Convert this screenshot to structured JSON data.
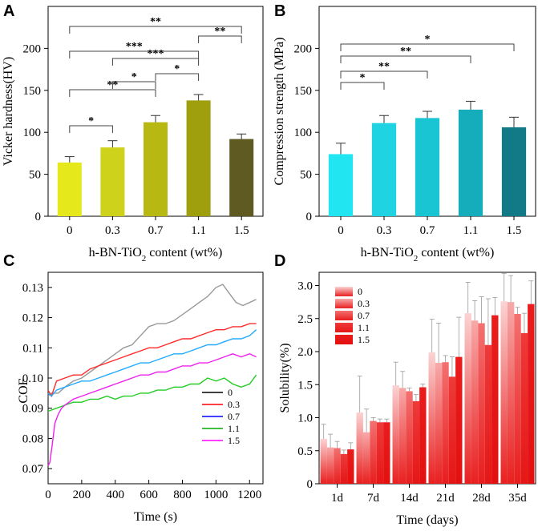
{
  "panels": {
    "A": {
      "label": "A"
    },
    "B": {
      "label": "B"
    },
    "C": {
      "label": "C"
    },
    "D": {
      "label": "D"
    }
  },
  "chart_data": [
    {
      "id": "A",
      "type": "bar",
      "xlabel": "h-BN-TiO₂ content (wt%)",
      "ylabel": "Vicker hardness(HV)",
      "ylim": [
        0,
        250
      ],
      "yticks": [
        0,
        50,
        100,
        150,
        200
      ],
      "categories": [
        "0",
        "0.3",
        "0.7",
        "1.1",
        "1.5"
      ],
      "values": [
        64,
        82,
        112,
        138,
        92
      ],
      "errors": [
        7,
        8,
        8,
        7,
        6
      ],
      "colors": [
        "#e5e81b",
        "#cfd21a",
        "#b8b813",
        "#9f9e0c",
        "#5f5a22"
      ],
      "significance": [
        {
          "from": 0,
          "to": 1,
          "label": "*"
        },
        {
          "from": 0,
          "to": 2,
          "label": "**"
        },
        {
          "from": 1,
          "to": 2,
          "label": "*"
        },
        {
          "from": 2,
          "to": 3,
          "label": "*"
        },
        {
          "from": 0,
          "to": 3,
          "label": "***"
        },
        {
          "from": 1,
          "to": 3,
          "label": "***"
        },
        {
          "from": 3,
          "to": 4,
          "label": "**"
        },
        {
          "from": 0,
          "to": 4,
          "label": "**"
        }
      ]
    },
    {
      "id": "B",
      "type": "bar",
      "xlabel": "h-BN-TiO₂ content (wt%)",
      "ylabel": "Compression strength (MPa)",
      "ylim": [
        0,
        250
      ],
      "yticks": [
        0,
        50,
        100,
        150,
        200
      ],
      "categories": [
        "0",
        "0.3",
        "0.7",
        "1.1",
        "1.5"
      ],
      "values": [
        74,
        111,
        117,
        127,
        106
      ],
      "errors": [
        13,
        9,
        8,
        10,
        12
      ],
      "colors": [
        "#21e6f2",
        "#1fd3e2",
        "#19c4d3",
        "#15acbc",
        "#117a86"
      ],
      "significance": [
        {
          "from": 0,
          "to": 1,
          "label": "*"
        },
        {
          "from": 0,
          "to": 2,
          "label": "**"
        },
        {
          "from": 0,
          "to": 3,
          "label": "**"
        },
        {
          "from": 0,
          "to": 4,
          "label": "*"
        }
      ]
    },
    {
      "id": "C",
      "type": "line",
      "xlabel": "Time (s)",
      "ylabel": "COF",
      "xlim": [
        0,
        1280
      ],
      "ylim": [
        0.065,
        0.135
      ],
      "xticks": [
        0,
        200,
        400,
        600,
        800,
        1000,
        1200
      ],
      "yticks": [
        0.07,
        0.08,
        0.09,
        0.1,
        0.11,
        0.12,
        0.13
      ],
      "ytick_labels": [
        "0.07",
        "0.08",
        "0.09",
        "0.10",
        "0.11",
        "0.12",
        "0.13"
      ],
      "legend_position": "lower-right",
      "series": [
        {
          "name": "0",
          "color": "#999999",
          "points": [
            [
              0,
              0.094
            ],
            [
              20,
              0.095
            ],
            [
              60,
              0.095
            ],
            [
              100,
              0.097
            ],
            [
              150,
              0.099
            ],
            [
              200,
              0.1
            ],
            [
              250,
              0.102
            ],
            [
              300,
              0.104
            ],
            [
              350,
              0.106
            ],
            [
              400,
              0.108
            ],
            [
              450,
              0.11
            ],
            [
              500,
              0.111
            ],
            [
              550,
              0.114
            ],
            [
              600,
              0.117
            ],
            [
              650,
              0.118
            ],
            [
              700,
              0.118
            ],
            [
              750,
              0.119
            ],
            [
              800,
              0.121
            ],
            [
              850,
              0.123
            ],
            [
              900,
              0.125
            ],
            [
              950,
              0.127
            ],
            [
              1000,
              0.13
            ],
            [
              1040,
              0.131
            ],
            [
              1080,
              0.128
            ],
            [
              1120,
              0.125
            ],
            [
              1160,
              0.124
            ],
            [
              1200,
              0.125
            ],
            [
              1240,
              0.126
            ]
          ]
        },
        {
          "name": "0.3",
          "color": "#ff2a2a",
          "points": [
            [
              0,
              0.096
            ],
            [
              20,
              0.094
            ],
            [
              50,
              0.099
            ],
            [
              100,
              0.1
            ],
            [
              150,
              0.101
            ],
            [
              200,
              0.101
            ],
            [
              250,
              0.103
            ],
            [
              300,
              0.104
            ],
            [
              350,
              0.105
            ],
            [
              400,
              0.106
            ],
            [
              450,
              0.107
            ],
            [
              500,
              0.108
            ],
            [
              550,
              0.109
            ],
            [
              600,
              0.11
            ],
            [
              650,
              0.11
            ],
            [
              700,
              0.111
            ],
            [
              750,
              0.112
            ],
            [
              800,
              0.113
            ],
            [
              850,
              0.113
            ],
            [
              900,
              0.114
            ],
            [
              950,
              0.115
            ],
            [
              1000,
              0.116
            ],
            [
              1050,
              0.116
            ],
            [
              1100,
              0.117
            ],
            [
              1150,
              0.117
            ],
            [
              1200,
              0.118
            ],
            [
              1240,
              0.118
            ]
          ]
        },
        {
          "name": "0.7",
          "color": "#22aaff",
          "points": [
            [
              0,
              0.095
            ],
            [
              20,
              0.094
            ],
            [
              50,
              0.096
            ],
            [
              100,
              0.097
            ],
            [
              150,
              0.098
            ],
            [
              200,
              0.099
            ],
            [
              250,
              0.099
            ],
            [
              300,
              0.1
            ],
            [
              350,
              0.101
            ],
            [
              400,
              0.102
            ],
            [
              450,
              0.103
            ],
            [
              500,
              0.104
            ],
            [
              550,
              0.105
            ],
            [
              600,
              0.105
            ],
            [
              650,
              0.106
            ],
            [
              700,
              0.107
            ],
            [
              750,
              0.108
            ],
            [
              800,
              0.108
            ],
            [
              850,
              0.109
            ],
            [
              900,
              0.11
            ],
            [
              950,
              0.111
            ],
            [
              1000,
              0.111
            ],
            [
              1050,
              0.112
            ],
            [
              1100,
              0.113
            ],
            [
              1150,
              0.113
            ],
            [
              1200,
              0.114
            ],
            [
              1240,
              0.116
            ]
          ]
        },
        {
          "name": "1.1",
          "color": "#22cc22",
          "points": [
            [
              0,
              0.089
            ],
            [
              50,
              0.09
            ],
            [
              100,
              0.091
            ],
            [
              150,
              0.092
            ],
            [
              200,
              0.092
            ],
            [
              250,
              0.093
            ],
            [
              300,
              0.093
            ],
            [
              350,
              0.094
            ],
            [
              400,
              0.093
            ],
            [
              450,
              0.094
            ],
            [
              500,
              0.094
            ],
            [
              550,
              0.095
            ],
            [
              600,
              0.095
            ],
            [
              650,
              0.096
            ],
            [
              700,
              0.096
            ],
            [
              750,
              0.097
            ],
            [
              800,
              0.097
            ],
            [
              850,
              0.098
            ],
            [
              900,
              0.098
            ],
            [
              950,
              0.1
            ],
            [
              1000,
              0.099
            ],
            [
              1050,
              0.1
            ],
            [
              1100,
              0.098
            ],
            [
              1150,
              0.097
            ],
            [
              1200,
              0.098
            ],
            [
              1240,
              0.101
            ]
          ]
        },
        {
          "name": "1.5",
          "color": "#ee22ee",
          "points": [
            [
              0,
              0.071
            ],
            [
              10,
              0.072
            ],
            [
              25,
              0.078
            ],
            [
              40,
              0.085
            ],
            [
              60,
              0.088
            ],
            [
              80,
              0.09
            ],
            [
              100,
              0.091
            ],
            [
              150,
              0.093
            ],
            [
              200,
              0.094
            ],
            [
              250,
              0.095
            ],
            [
              300,
              0.096
            ],
            [
              350,
              0.097
            ],
            [
              400,
              0.098
            ],
            [
              450,
              0.099
            ],
            [
              500,
              0.1
            ],
            [
              550,
              0.101
            ],
            [
              600,
              0.101
            ],
            [
              650,
              0.102
            ],
            [
              700,
              0.102
            ],
            [
              750,
              0.103
            ],
            [
              800,
              0.104
            ],
            [
              850,
              0.104
            ],
            [
              900,
              0.105
            ],
            [
              950,
              0.105
            ],
            [
              1000,
              0.106
            ],
            [
              1050,
              0.107
            ],
            [
              1100,
              0.108
            ],
            [
              1150,
              0.107
            ],
            [
              1200,
              0.108
            ],
            [
              1240,
              0.107
            ]
          ]
        }
      ],
      "legend_colors": [
        "#000000",
        "#ff0000",
        "#0000ff",
        "#00aa00",
        "#ff00ff"
      ]
    },
    {
      "id": "D",
      "type": "bar",
      "xlabel": "Time (days)",
      "ylabel": "Solubility(%)",
      "ylim": [
        0,
        3.2
      ],
      "yticks": [
        0,
        0.5,
        1.0,
        1.5,
        2.0,
        2.5,
        3.0
      ],
      "ytick_labels": [
        "0",
        "0.5",
        "1.0",
        "1.5",
        "2.0",
        "2.5",
        "3.0"
      ],
      "categories": [
        "1d",
        "7d",
        "14d",
        "21d",
        "28d",
        "35d"
      ],
      "legend_position": "top-left",
      "series": [
        {
          "name": "0",
          "values": [
            0.68,
            1.08,
            1.49,
            1.99,
            2.58,
            2.76
          ],
          "errors": [
            0.22,
            0.55,
            0.35,
            0.5,
            0.47,
            0.42
          ]
        },
        {
          "name": "0.3",
          "values": [
            0.55,
            0.78,
            1.45,
            1.83,
            2.47,
            2.75
          ],
          "errors": [
            0.2,
            0.35,
            0.25,
            0.6,
            0.3,
            0.4
          ]
        },
        {
          "name": "0.7",
          "values": [
            0.54,
            0.95,
            1.4,
            1.84,
            2.43,
            2.57
          ],
          "errors": [
            0.1,
            0.05,
            0.05,
            0.1,
            0.4,
            0.1
          ]
        },
        {
          "name": "1.1",
          "values": [
            0.45,
            0.93,
            1.25,
            1.62,
            2.1,
            2.28
          ],
          "errors": [
            0.06,
            0.05,
            0.1,
            0.3,
            0.7,
            0.3
          ]
        },
        {
          "name": "1.5",
          "values": [
            0.52,
            0.93,
            1.46,
            1.92,
            2.55,
            2.72
          ],
          "errors": [
            0.1,
            0.05,
            0.05,
            0.6,
            0.27,
            0.35
          ]
        }
      ]
    }
  ]
}
